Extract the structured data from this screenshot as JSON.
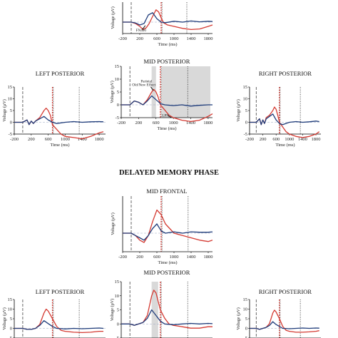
{
  "phase_title": "DELAYED MEMORY PHASE",
  "colors": {
    "red": "#d43a32",
    "blue": "#1f3c7a",
    "axis": "#000000",
    "shade": "#d9d9d9"
  },
  "chart_data": [
    {
      "type": "line",
      "id": "top-mid",
      "title": "",
      "xlabel": "Time (ms)",
      "ylabel": "Voltage (µV)",
      "xlim": [
        -200,
        1900
      ],
      "ylim": [
        -4,
        7
      ],
      "xticks": [
        -200,
        200,
        600,
        1000,
        1400,
        1800
      ],
      "xtick_labels": [
        "-200",
        "200",
        "600",
        "1000",
        "1400",
        "1800"
      ],
      "yticks": [],
      "ytick_labels": [],
      "vlines": [
        {
          "x": 0,
          "style": "dash"
        },
        {
          "x": 700,
          "style": "red"
        },
        {
          "x": 720,
          "style": "dot"
        },
        {
          "x": 1300,
          "style": "dot"
        }
      ],
      "shaded": [],
      "annotations": [
        {
          "text": "FN400",
          "x": 230,
          "y": -3.3
        }
      ],
      "series": [
        {
          "color": "red",
          "x": [
            -200,
            0,
            100,
            200,
            280,
            350,
            420,
            500,
            580,
            640,
            700,
            760,
            850,
            1000,
            1200,
            1400,
            1600,
            1800,
            1900
          ],
          "y": [
            0,
            0,
            -0.5,
            -1.5,
            -2.6,
            -2.0,
            -0.5,
            2.0,
            4.3,
            3.6,
            1.5,
            -0.3,
            -1.0,
            -1.5,
            -2.2,
            -2.6,
            -2.4,
            -1.5,
            -1.0
          ]
        },
        {
          "color": "blue",
          "x": [
            -200,
            0,
            100,
            200,
            300,
            400,
            500,
            600,
            700,
            800,
            1000,
            1200,
            1400,
            1600,
            1800,
            1900
          ],
          "y": [
            0,
            0,
            -0.3,
            -1.0,
            -0.5,
            2.5,
            3.3,
            1.2,
            0,
            -0.2,
            0.3,
            0,
            0.4,
            0.1,
            0.3,
            0.2
          ]
        }
      ]
    },
    {
      "type": "line",
      "id": "enc-left",
      "title": "LEFT POSTERIOR",
      "xlabel": "Time (ms)",
      "ylabel": "Voltage (µV)",
      "xlim": [
        -200,
        1950
      ],
      "ylim": [
        -5,
        15
      ],
      "xticks": [
        -200,
        200,
        600,
        1000,
        1400,
        1800
      ],
      "xtick_labels": [
        "-200",
        "200",
        "600",
        "1000",
        "1400",
        "1800"
      ],
      "yticks": [
        -5,
        0,
        5,
        10,
        15
      ],
      "ytick_labels": [
        "-5",
        "0",
        "5",
        "10",
        "15"
      ],
      "vlines": [
        {
          "x": 0,
          "style": "dash"
        },
        {
          "x": 700,
          "style": "red"
        },
        {
          "x": 720,
          "style": "dot"
        },
        {
          "x": 1330,
          "style": "dot"
        }
      ],
      "shaded": [],
      "annotations": [],
      "series": [
        {
          "color": "red",
          "x": [
            -200,
            0,
            100,
            150,
            200,
            250,
            300,
            400,
            500,
            550,
            600,
            650,
            700,
            800,
            900,
            1000,
            1200,
            1400,
            1600,
            1800,
            1900
          ],
          "y": [
            0,
            0,
            1,
            -1,
            0.5,
            -0.5,
            0.5,
            2,
            5,
            6,
            5,
            3,
            -1,
            -3,
            -5,
            -6,
            -6.5,
            -7,
            -6,
            -4.5,
            -4
          ]
        },
        {
          "color": "blue",
          "x": [
            -200,
            0,
            100,
            150,
            200,
            250,
            300,
            400,
            500,
            600,
            700,
            800,
            1000,
            1200,
            1400,
            1600,
            1800,
            1900
          ],
          "y": [
            0,
            0,
            1,
            -1,
            0.5,
            -0.5,
            0.5,
            1.5,
            2.5,
            1,
            0,
            -0.5,
            0,
            0.3,
            0,
            0.2,
            0.3,
            0.2
          ]
        }
      ]
    },
    {
      "type": "line",
      "id": "enc-mid",
      "title": "MID POSTERIOR",
      "xlabel": "Time (ms)",
      "ylabel": "Voltage (µV)",
      "xlim": [
        -200,
        1900
      ],
      "ylim": [
        -5,
        15
      ],
      "xticks": [
        -200,
        200,
        600,
        1000,
        1400,
        1800
      ],
      "xtick_labels": [
        "-200",
        "200",
        "600",
        "1000",
        "1400",
        "1800"
      ],
      "yticks": [
        -5,
        0,
        5,
        10,
        15
      ],
      "ytick_labels": [
        "-5",
        "0",
        "5",
        "10",
        "15"
      ],
      "vlines": [
        {
          "x": 0,
          "style": "dash"
        },
        {
          "x": 700,
          "style": "red"
        },
        {
          "x": 720,
          "style": "dot"
        },
        {
          "x": 1330,
          "style": "dot"
        }
      ],
      "shaded": [
        [
          500,
          600
        ],
        [
          730,
          1850
        ]
      ],
      "annotations": [
        {
          "text": "Parietal",
          "x": 380,
          "y": 8.8
        },
        {
          "text": "Old/New Effect",
          "x": 320,
          "y": 7.4
        },
        {
          "text": "LPN",
          "x": 820,
          "y": -4.6
        }
      ],
      "series": [
        {
          "color": "red",
          "x": [
            -200,
            0,
            100,
            200,
            300,
            400,
            500,
            550,
            600,
            650,
            700,
            800,
            900,
            1000,
            1200,
            1400,
            1600,
            1800,
            1900
          ],
          "y": [
            0,
            0,
            1.5,
            1,
            0,
            2,
            5,
            6,
            5,
            3,
            0,
            -2,
            -4,
            -5,
            -6,
            -6.5,
            -6,
            -4.5,
            -3.5
          ]
        },
        {
          "color": "blue",
          "x": [
            -200,
            0,
            100,
            200,
            300,
            400,
            500,
            600,
            700,
            800,
            1000,
            1200,
            1400,
            1600,
            1800,
            1900
          ],
          "y": [
            0,
            0,
            1.5,
            1,
            0,
            1.5,
            3.5,
            2,
            0.5,
            0,
            -0.3,
            0,
            -0.5,
            -0.2,
            0,
            0
          ]
        }
      ]
    },
    {
      "type": "line",
      "id": "enc-right",
      "title": "RIGHT POSTERIOR",
      "xlabel": "Time (ms)",
      "ylabel": "Voltage (µV)",
      "xlim": [
        -200,
        1950
      ],
      "ylim": [
        -5,
        15
      ],
      "xticks": [
        -200,
        200,
        600,
        1000,
        1400,
        1800
      ],
      "xtick_labels": [
        "-200",
        "200",
        "600",
        "1000",
        "1400",
        "1800"
      ],
      "yticks": [
        -5,
        0,
        5,
        10,
        15
      ],
      "ytick_labels": [
        "-5",
        "0",
        "5",
        "10",
        "15"
      ],
      "vlines": [
        {
          "x": 0,
          "style": "dash"
        },
        {
          "x": 700,
          "style": "red"
        },
        {
          "x": 720,
          "style": "dot"
        },
        {
          "x": 1330,
          "style": "dot"
        }
      ],
      "shaded": [],
      "annotations": [],
      "series": [
        {
          "color": "red",
          "x": [
            -200,
            0,
            100,
            150,
            200,
            250,
            300,
            400,
            500,
            550,
            600,
            650,
            700,
            800,
            900,
            1000,
            1200,
            1400,
            1600,
            1800,
            1900
          ],
          "y": [
            0,
            0,
            1.5,
            -1,
            1,
            -0.5,
            2,
            3,
            5,
            6.5,
            5.5,
            3,
            0,
            -2,
            -4,
            -5,
            -6,
            -6.5,
            -6,
            -5,
            -4
          ]
        },
        {
          "color": "blue",
          "x": [
            -200,
            0,
            100,
            150,
            200,
            250,
            300,
            400,
            500,
            600,
            700,
            800,
            1000,
            1200,
            1400,
            1600,
            1800,
            1900
          ],
          "y": [
            0,
            0,
            1.5,
            -1,
            1,
            -0.5,
            1.5,
            2.5,
            3.5,
            1,
            -0.5,
            -1,
            0,
            0.3,
            0,
            0.2,
            0.5,
            0.3
          ]
        }
      ]
    },
    {
      "type": "line",
      "id": "del-frontal",
      "title": "MID FRONTAL",
      "xlabel": "Time (ms)",
      "ylabel": "Voltage (µV)",
      "xlim": [
        -200,
        1900
      ],
      "ylim": [
        -4,
        8
      ],
      "xticks": [
        -200,
        200,
        600,
        1000,
        1400,
        1800
      ],
      "xtick_labels": [
        "-200",
        "200",
        "600",
        "1000",
        "1400",
        "1800"
      ],
      "yticks": [],
      "ytick_labels": [],
      "vlines": [
        {
          "x": 0,
          "style": "dash"
        },
        {
          "x": 700,
          "style": "red"
        },
        {
          "x": 720,
          "style": "dot"
        },
        {
          "x": 1330,
          "style": "dot"
        }
      ],
      "shaded": [],
      "annotations": [],
      "series": [
        {
          "color": "red",
          "x": [
            -200,
            0,
            100,
            200,
            300,
            400,
            500,
            600,
            700,
            800,
            900,
            1000,
            1200,
            1400,
            1600,
            1800,
            1900
          ],
          "y": [
            0,
            0,
            -0.5,
            -1.5,
            -2,
            -0.5,
            2.5,
            5,
            4,
            2,
            1,
            0,
            -0.5,
            -1,
            -1.5,
            -1.8,
            -1.5
          ]
        },
        {
          "color": "blue",
          "x": [
            -200,
            0,
            100,
            200,
            300,
            400,
            500,
            600,
            700,
            800,
            1000,
            1200,
            1400,
            1600,
            1800,
            1900
          ],
          "y": [
            0,
            0,
            -0.5,
            -1,
            -1.5,
            -0.5,
            1,
            2,
            0.5,
            0,
            0.3,
            0,
            0.3,
            0.2,
            0.2,
            0.3
          ]
        }
      ]
    },
    {
      "type": "line",
      "id": "del-left",
      "title": "LEFT POSTERIOR",
      "xlabel": "",
      "ylabel": "Voltage (µV)",
      "xlim": [
        -200,
        1950
      ],
      "ylim": [
        -5,
        15
      ],
      "xticks": [],
      "xtick_labels": [],
      "yticks": [
        -5,
        0,
        5,
        10,
        15
      ],
      "ytick_labels": [
        "-5",
        "0",
        "5",
        "10",
        "15"
      ],
      "vlines": [
        {
          "x": 0,
          "style": "dash"
        },
        {
          "x": 700,
          "style": "red"
        },
        {
          "x": 720,
          "style": "dot"
        },
        {
          "x": 1330,
          "style": "dot"
        }
      ],
      "shaded": [],
      "annotations": [],
      "series": [
        {
          "color": "red",
          "x": [
            -200,
            0,
            100,
            200,
            300,
            400,
            500,
            550,
            600,
            700,
            800,
            900,
            1000,
            1200,
            1400,
            1600,
            1800,
            1900
          ],
          "y": [
            0,
            0,
            -0.5,
            -0.5,
            0,
            2,
            8,
            10,
            9,
            5,
            1,
            -1,
            -1.5,
            -2,
            -2.2,
            -2,
            -1.5,
            -1.5
          ]
        },
        {
          "color": "blue",
          "x": [
            -200,
            0,
            100,
            200,
            300,
            400,
            500,
            600,
            700,
            800,
            1000,
            1200,
            1400,
            1600,
            1800,
            1900
          ],
          "y": [
            0,
            0,
            -0.5,
            -0.5,
            0,
            1.5,
            4,
            2.5,
            1,
            0,
            -0.3,
            0,
            -0.2,
            0,
            0.2,
            0
          ]
        }
      ]
    },
    {
      "type": "line",
      "id": "del-mid",
      "title": "MID POSTERIOR",
      "xlabel": "",
      "ylabel": "Voltage (µV)",
      "xlim": [
        -200,
        1900
      ],
      "ylim": [
        -5,
        15
      ],
      "xticks": [],
      "xtick_labels": [],
      "yticks": [
        -5,
        0,
        5,
        10,
        15
      ],
      "ytick_labels": [
        "-5",
        "0",
        "5",
        "10",
        "15"
      ],
      "vlines": [
        {
          "x": 0,
          "style": "dash"
        },
        {
          "x": 700,
          "style": "red"
        },
        {
          "x": 720,
          "style": "dot"
        },
        {
          "x": 1330,
          "style": "dot"
        }
      ],
      "shaded": [
        [
          500,
          650
        ]
      ],
      "annotations": [],
      "series": [
        {
          "color": "red",
          "x": [
            -200,
            0,
            100,
            200,
            300,
            400,
            500,
            550,
            600,
            650,
            700,
            800,
            900,
            1000,
            1200,
            1400,
            1600,
            1800,
            1900
          ],
          "y": [
            0,
            0,
            -0.5,
            0,
            0.5,
            3,
            10,
            12,
            11,
            8,
            5,
            2,
            0,
            -0.5,
            -1,
            -1.5,
            -1.5,
            -1,
            -1
          ]
        },
        {
          "color": "blue",
          "x": [
            -200,
            0,
            100,
            200,
            300,
            400,
            500,
            600,
            700,
            800,
            1000,
            1200,
            1400,
            1600,
            1800,
            1900
          ],
          "y": [
            0,
            0,
            -0.5,
            0,
            0.5,
            2,
            5,
            3,
            1,
            0,
            -0.3,
            0,
            0.2,
            0,
            0.2,
            0.1
          ]
        }
      ]
    },
    {
      "type": "line",
      "id": "del-right",
      "title": "RIGHT POSTERIOR",
      "xlabel": "",
      "ylabel": "Voltage (µV)",
      "xlim": [
        -200,
        1950
      ],
      "ylim": [
        -5,
        15
      ],
      "xticks": [],
      "xtick_labels": [],
      "yticks": [
        -5,
        0,
        5,
        10,
        15
      ],
      "ytick_labels": [
        "-5",
        "0",
        "5",
        "10",
        "15"
      ],
      "vlines": [
        {
          "x": 0,
          "style": "dash"
        },
        {
          "x": 700,
          "style": "red"
        },
        {
          "x": 720,
          "style": "dot"
        },
        {
          "x": 1330,
          "style": "dot"
        }
      ],
      "shaded": [],
      "annotations": [],
      "series": [
        {
          "color": "red",
          "x": [
            -200,
            0,
            100,
            200,
            300,
            400,
            500,
            550,
            600,
            700,
            800,
            900,
            1000,
            1200,
            1400,
            1600,
            1800,
            1900
          ],
          "y": [
            0,
            0,
            -0.5,
            0,
            0.5,
            2.5,
            8,
            9.5,
            8.5,
            5,
            1,
            -1,
            -1.5,
            -2,
            -2,
            -1.8,
            -1.5,
            -1.2
          ]
        },
        {
          "color": "blue",
          "x": [
            -200,
            0,
            100,
            200,
            300,
            400,
            500,
            600,
            700,
            800,
            1000,
            1200,
            1400,
            1600,
            1800,
            1900
          ],
          "y": [
            0,
            0,
            -0.5,
            0,
            0.5,
            1.5,
            3.5,
            2,
            1,
            0,
            -0.2,
            0,
            0.2,
            0,
            0.2,
            0.1
          ]
        }
      ]
    }
  ]
}
